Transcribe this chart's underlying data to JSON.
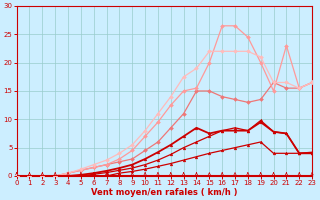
{
  "xlabel": "Vent moyen/en rafales ( km/h )",
  "bg_color": "#cceeff",
  "grid_color": "#99cccc",
  "xlim": [
    0,
    23
  ],
  "ylim": [
    0,
    30
  ],
  "xticks": [
    0,
    1,
    2,
    3,
    4,
    5,
    6,
    7,
    8,
    9,
    10,
    11,
    12,
    13,
    14,
    15,
    16,
    17,
    18,
    19,
    20,
    21,
    22,
    23
  ],
  "yticks": [
    0,
    5,
    10,
    15,
    20,
    25,
    30
  ],
  "series": [
    {
      "x": [
        0,
        1,
        2,
        3,
        4,
        5,
        6,
        7,
        8,
        9,
        10,
        11,
        12,
        13,
        14,
        15,
        16,
        17,
        18,
        19,
        20,
        21,
        22,
        23
      ],
      "y": [
        0,
        0,
        0,
        0,
        0,
        0,
        0,
        0,
        0.5,
        0.8,
        1.2,
        1.7,
        2.2,
        2.8,
        3.4,
        4.0,
        4.5,
        5.0,
        5.5,
        6.0,
        4.0,
        4.0,
        4.0,
        4.1
      ],
      "color": "#cc0000",
      "lw": 0.9,
      "marker": "^",
      "ms": 2.0
    },
    {
      "x": [
        0,
        1,
        2,
        3,
        4,
        5,
        6,
        7,
        8,
        9,
        10,
        11,
        12,
        13,
        14,
        15,
        16,
        17,
        18,
        19,
        20,
        21,
        22,
        23
      ],
      "y": [
        0,
        0,
        0,
        0,
        0,
        0,
        0.3,
        0.6,
        1.0,
        1.4,
        2.0,
        2.8,
        3.8,
        5.0,
        6.0,
        7.0,
        8.0,
        8.5,
        8.0,
        9.8,
        7.8,
        7.5,
        4.0,
        4.2
      ],
      "color": "#cc0000",
      "lw": 0.9,
      "marker": "^",
      "ms": 2.0
    },
    {
      "x": [
        0,
        1,
        2,
        3,
        4,
        5,
        6,
        7,
        8,
        9,
        10,
        11,
        12,
        13,
        14,
        15,
        16,
        17,
        18,
        19,
        20,
        21,
        22,
        23
      ],
      "y": [
        0,
        0,
        0,
        0,
        0,
        0.2,
        0.5,
        0.9,
        1.4,
        2.0,
        3.0,
        4.2,
        5.5,
        7.0,
        8.5,
        7.5,
        8.0,
        8.0,
        8.0,
        9.5,
        7.8,
        7.5,
        4.0,
        4.0
      ],
      "color": "#cc0000",
      "lw": 1.3,
      "marker": "^",
      "ms": 2.0
    },
    {
      "x": [
        0,
        1,
        2,
        3,
        4,
        5,
        6,
        7,
        8,
        9,
        10,
        11,
        12,
        13,
        14,
        15,
        16,
        17,
        18,
        19,
        20,
        21,
        22,
        23
      ],
      "y": [
        0,
        0,
        0,
        0,
        0.5,
        1.0,
        1.5,
        2.0,
        2.5,
        3.0,
        4.5,
        6.0,
        8.5,
        11.0,
        15.0,
        15.0,
        14.0,
        13.5,
        13.0,
        13.5,
        16.5,
        15.5,
        15.5,
        16.5
      ],
      "color": "#ee7777",
      "lw": 0.9,
      "marker": "D",
      "ms": 2.0
    },
    {
      "x": [
        0,
        1,
        2,
        3,
        4,
        5,
        6,
        7,
        8,
        9,
        10,
        11,
        12,
        13,
        14,
        15,
        16,
        17,
        18,
        19,
        20,
        21,
        22,
        23
      ],
      "y": [
        0,
        0,
        0,
        0,
        0.5,
        1.0,
        1.5,
        2.0,
        3.0,
        4.5,
        7.0,
        9.5,
        12.5,
        15.0,
        15.5,
        20.0,
        26.5,
        26.5,
        24.5,
        20.0,
        15.0,
        23.0,
        15.5,
        16.5
      ],
      "color": "#ff9999",
      "lw": 0.9,
      "marker": "D",
      "ms": 2.0
    },
    {
      "x": [
        0,
        1,
        2,
        3,
        4,
        5,
        6,
        7,
        8,
        9,
        10,
        11,
        12,
        13,
        14,
        15,
        16,
        17,
        18,
        19,
        20,
        21,
        22,
        23
      ],
      "y": [
        0,
        0,
        0,
        0,
        0.5,
        1.2,
        2.0,
        2.8,
        4.0,
        5.5,
        8.0,
        11.0,
        14.0,
        17.5,
        19.0,
        22.0,
        22.0,
        22.0,
        22.0,
        21.0,
        16.5,
        16.5,
        15.5,
        16.5
      ],
      "color": "#ffbbbb",
      "lw": 0.9,
      "marker": "D",
      "ms": 2.0
    }
  ],
  "tick_color": "#cc0000",
  "label_color": "#cc0000",
  "tick_fontsize": 5.0,
  "xlabel_fontsize": 6.0
}
